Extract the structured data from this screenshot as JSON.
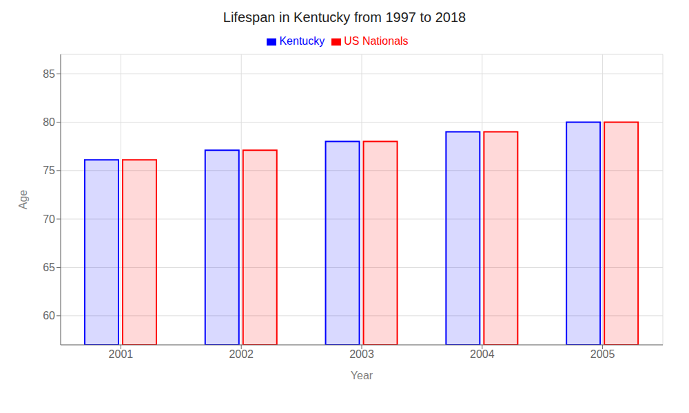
{
  "chart_data": {
    "type": "bar",
    "title": "Lifespan in Kentucky from 1997 to 2018",
    "x_label": "Year",
    "y_label": "Age",
    "categories": [
      "2001",
      "2002",
      "2003",
      "2004",
      "2005"
    ],
    "series": [
      {
        "name": "Kentucky",
        "color": "#0000ff",
        "values": [
          76.1,
          77.1,
          78.0,
          79.0,
          80.0
        ]
      },
      {
        "name": "US Nationals",
        "color": "#ff0000",
        "values": [
          76.1,
          77.1,
          78.0,
          79.0,
          80.0
        ]
      }
    ],
    "ylim": [
      57,
      87
    ],
    "yticks": [
      60,
      65,
      70,
      75,
      80,
      85
    ],
    "grid": true,
    "legend": "top"
  }
}
